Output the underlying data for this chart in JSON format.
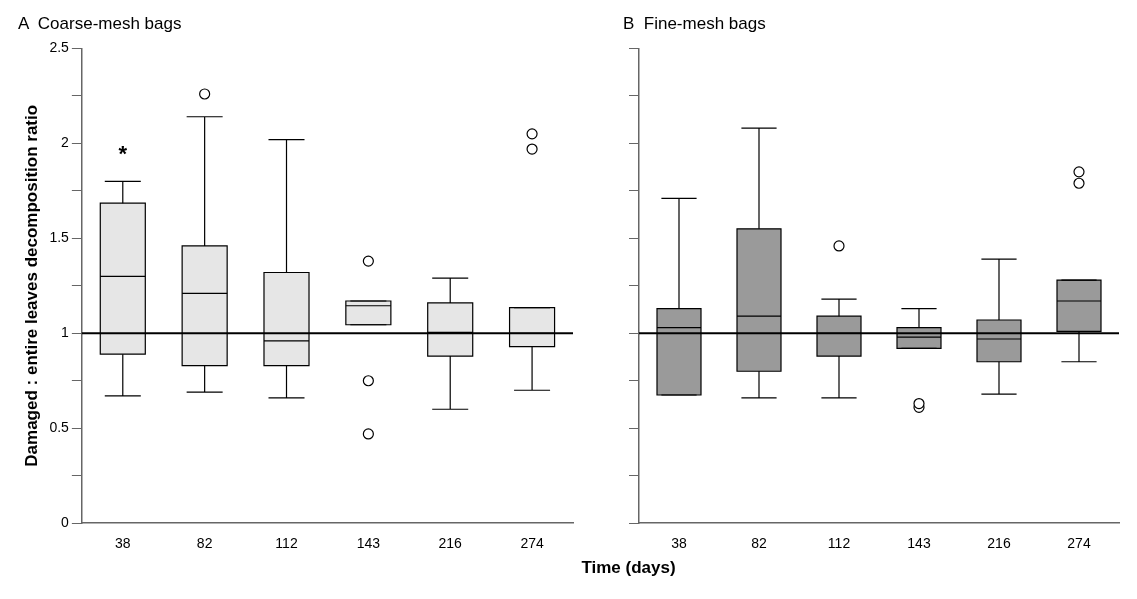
{
  "chart_data": [
    {
      "type": "box",
      "title": "A  Coarse-mesh bags",
      "xlabel": "Time (days)",
      "ylabel": "Damaged : entire leaves decomposition ratio",
      "categories": [
        "38",
        "82",
        "112",
        "143",
        "216",
        "274"
      ],
      "ylim": [
        0,
        2.5
      ],
      "yticks": [
        0,
        {
          "value": 0.25,
          "label": null
        },
        0.5,
        {
          "value": 0.75,
          "label": null
        },
        1,
        {
          "value": 1.25,
          "label": null
        },
        1.5,
        {
          "value": 1.75,
          "label": null
        },
        2,
        {
          "value": 2.25,
          "label": null
        },
        2.5
      ],
      "series": [
        {
          "color": "#e6e6e6",
          "boxes": [
            {
              "low": 0.67,
              "q1": 0.89,
              "median": 1.3,
              "q3": 1.685,
              "high": 1.8
            },
            {
              "low": 0.69,
              "q1": 0.83,
              "median": 1.21,
              "q3": 1.46,
              "high": 2.14,
              "outliers": [
                2.26
              ]
            },
            {
              "low": 0.66,
              "q1": 0.83,
              "median": 0.96,
              "q3": 1.32,
              "high": 2.02
            },
            {
              "low": 1.045,
              "q1": 1.045,
              "median": 1.145,
              "q3": 1.17,
              "high": 1.17,
              "outliers": [
                1.38,
                0.75,
                0.47
              ]
            },
            {
              "low": 0.6,
              "q1": 0.88,
              "median": 1.005,
              "q3": 1.16,
              "high": 1.29
            },
            {
              "low": 0.7,
              "q1": 0.93,
              "median": 1.0,
              "q3": 1.135,
              "high": 1.135,
              "outliers": [
                2.05,
                1.97
              ]
            }
          ]
        }
      ],
      "ref_lines": [
        {
          "axis": "y",
          "value": 1
        }
      ],
      "annotations": [
        "*"
      ]
    },
    {
      "type": "box",
      "title": "B  Fine-mesh bags",
      "categories": [
        "38",
        "82",
        "112",
        "143",
        "216",
        "274"
      ],
      "ylim": [
        0,
        2.5
      ],
      "yticks": [
        0,
        {
          "value": 0.25,
          "label": null
        },
        0.5,
        {
          "value": 0.75,
          "label": null
        },
        1,
        {
          "value": 1.25,
          "label": null
        },
        1.5,
        {
          "value": 1.75,
          "label": null
        },
        2,
        {
          "value": 2.25,
          "label": null
        },
        2.5
      ],
      "tick_labels": "x",
      "series": [
        {
          "color": "#9a9a9a",
          "boxes": [
            {
              "low": 0.675,
              "q1": 0.675,
              "median": 1.03,
              "q3": 1.13,
              "high": 1.71
            },
            {
              "low": 0.66,
              "q1": 0.8,
              "median": 1.09,
              "q3": 1.55,
              "high": 2.08
            },
            {
              "low": 0.66,
              "q1": 0.88,
              "median": 1.0,
              "q3": 1.09,
              "high": 1.18,
              "outliers": [
                1.46
              ]
            },
            {
              "low": 0.92,
              "q1": 0.92,
              "median": 0.98,
              "q3": 1.03,
              "high": 1.13,
              "outliers": [
                0.63,
                0.61
              ]
            },
            {
              "low": 0.68,
              "q1": 0.85,
              "median": 0.97,
              "q3": 1.07,
              "high": 1.39
            },
            {
              "low": 0.85,
              "q1": 1.01,
              "median": 1.17,
              "q3": 1.28,
              "high": 1.28,
              "outliers": [
                1.85,
                1.79
              ]
            }
          ]
        }
      ],
      "ref_lines": [
        {
          "axis": "y",
          "value": 1
        }
      ]
    }
  ]
}
